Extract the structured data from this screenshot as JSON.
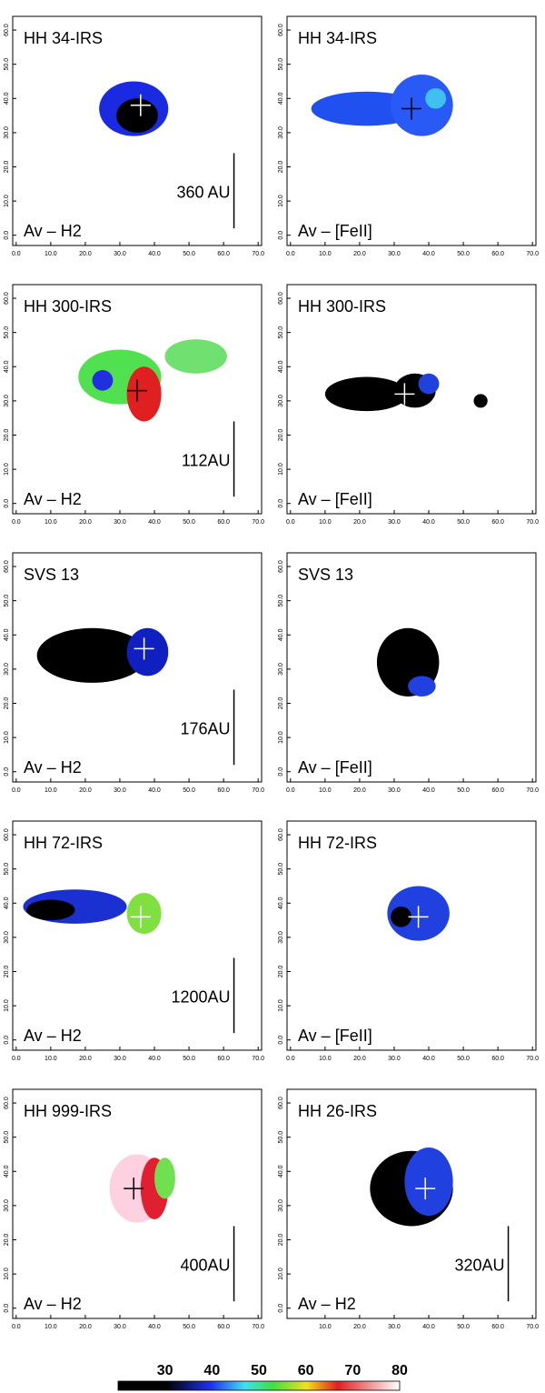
{
  "axes": {
    "xlim": [
      -1,
      71
    ],
    "ylim": [
      -3,
      64
    ],
    "xticks": [
      {
        "value": 0,
        "label": "0.0"
      },
      {
        "value": 10,
        "label": "10.0"
      },
      {
        "value": 20,
        "label": "20.0"
      },
      {
        "value": 30,
        "label": "30.0"
      },
      {
        "value": 40,
        "label": "40.0"
      },
      {
        "value": 50,
        "label": "50.0"
      },
      {
        "value": 60,
        "label": "60.0"
      },
      {
        "value": 70,
        "label": "70.0"
      }
    ],
    "yticks": [
      {
        "value": 0,
        "label": "0.0"
      },
      {
        "value": 10,
        "label": "10.0"
      },
      {
        "value": 20,
        "label": "20.0"
      },
      {
        "value": 30,
        "label": "30.0"
      },
      {
        "value": 40,
        "label": "40.0"
      },
      {
        "value": 50,
        "label": "50.0"
      },
      {
        "value": 60,
        "label": "60.0"
      }
    ]
  },
  "panels": [
    {
      "title": "HH 34-IRS",
      "label": "Av – H2",
      "scale": "360 AU"
    },
    {
      "title": "HH 34-IRS",
      "label": "Av – [FeII]"
    },
    {
      "title": "HH 300-IRS",
      "label": "Av – H2",
      "scale": "112AU"
    },
    {
      "title": "HH 300-IRS",
      "label": "Av – [FeII]"
    },
    {
      "title": "SVS 13",
      "label": "Av – H2",
      "scale": "176AU"
    },
    {
      "title": "SVS 13",
      "label": "Av – [FeII]"
    },
    {
      "title": "HH 72-IRS",
      "label": "Av – H2",
      "scale": "1200AU"
    },
    {
      "title": "HH 72-IRS",
      "label": "Av – [FeII]"
    },
    {
      "title": "HH 999-IRS",
      "label": "Av – H2",
      "scale": "400AU"
    },
    {
      "title": "HH 26-IRS",
      "label": "Av – H2",
      "scale": "320AU",
      "first_xtick": 1
    }
  ],
  "colorbar": {
    "range": [
      20,
      80
    ],
    "ticks": [
      30,
      40,
      50,
      60,
      70,
      80
    ]
  }
}
